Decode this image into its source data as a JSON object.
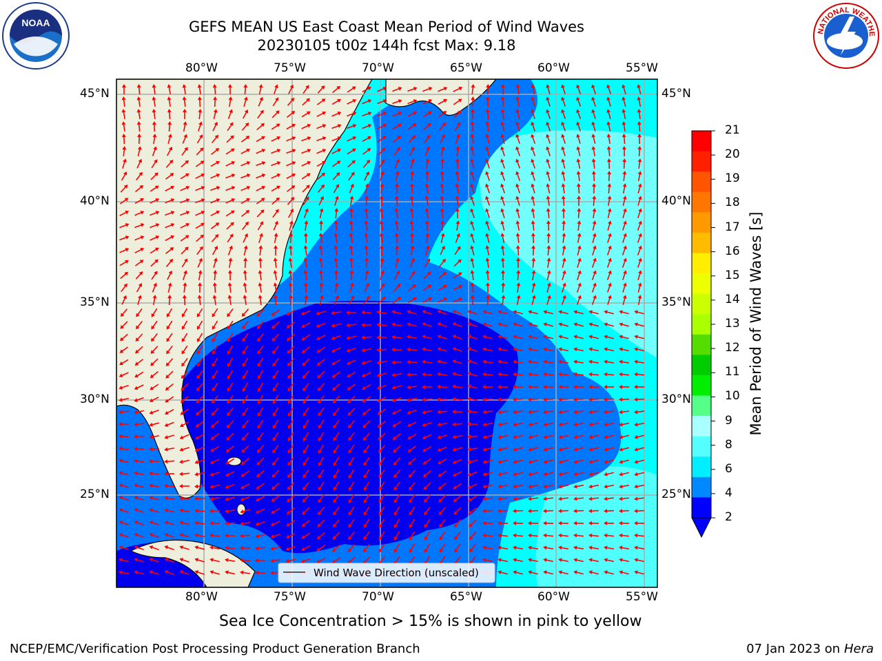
{
  "title_line1": "GEFS MEAN US East Coast Mean Period of Wind Waves",
  "title_line2": "20230105 t00z 144h fcst   Max: 9.18",
  "lon_ticks": [
    "80°W",
    "75°W",
    "70°W",
    "65°W",
    "60°W",
    "55°W"
  ],
  "lat_ticks": [
    "45°N",
    "40°N",
    "35°N",
    "30°N",
    "25°N"
  ],
  "legend_label": "Wind Wave Direction (unscaled)",
  "colorbar": {
    "title": "Mean Period of Wind Waves [s]",
    "ticks": [
      "21",
      "20",
      "19",
      "18",
      "17",
      "16",
      "15",
      "14",
      "13",
      "12",
      "11",
      "10",
      "9",
      "8",
      "6",
      "4",
      "2"
    ],
    "colors": [
      "#ff0000",
      "#ff2000",
      "#ff5500",
      "#ff7700",
      "#ff9900",
      "#ffbb00",
      "#ffee00",
      "#eeff00",
      "#ccff00",
      "#aaff00",
      "#55dd00",
      "#00cc00",
      "#00ee00",
      "#55ff88",
      "#aaffff",
      "#55ffff",
      "#00eeff",
      "#0088ff",
      "#0000ff"
    ],
    "under_color": "#0000ff"
  },
  "map_colors": {
    "land": "#eeeedd",
    "deep_blue": "#0000ee",
    "mid_blue": "#0077ff",
    "cyan": "#00ffff",
    "light_cyan": "#88ffff",
    "arrow": "#ff0000"
  },
  "ice_note": "Sea Ice Concentration > 15% is shown in pink to yellow",
  "footer_left": "NCEP/EMC/Verification Post Processing Product Generation Branch",
  "footer_date": "07 Jan 2023 on",
  "footer_host": "Hera",
  "logos": {
    "noaa_text": "NOAA",
    "nws_text": "NATIONAL WEATHER SERVICE"
  }
}
